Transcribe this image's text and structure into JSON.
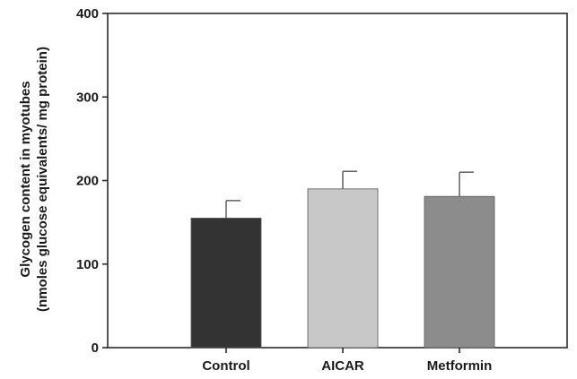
{
  "chart_data": {
    "type": "bar",
    "ylabel_line1": "Glycogen content in myotubes",
    "ylabel_line2": "(nmoles glucose equivalents/ mg protein)",
    "xlabel": "",
    "ylim": [
      0,
      400
    ],
    "yticks": [
      "0",
      "100",
      "200",
      "300",
      "400"
    ],
    "categories": [
      "Control",
      "AICAR",
      "Metformin"
    ],
    "values": [
      155,
      190,
      181
    ],
    "errors": [
      21,
      21,
      29
    ],
    "colors": [
      "#333333",
      "#c8c8c8",
      "#8c8c8c"
    ],
    "grid": false
  }
}
